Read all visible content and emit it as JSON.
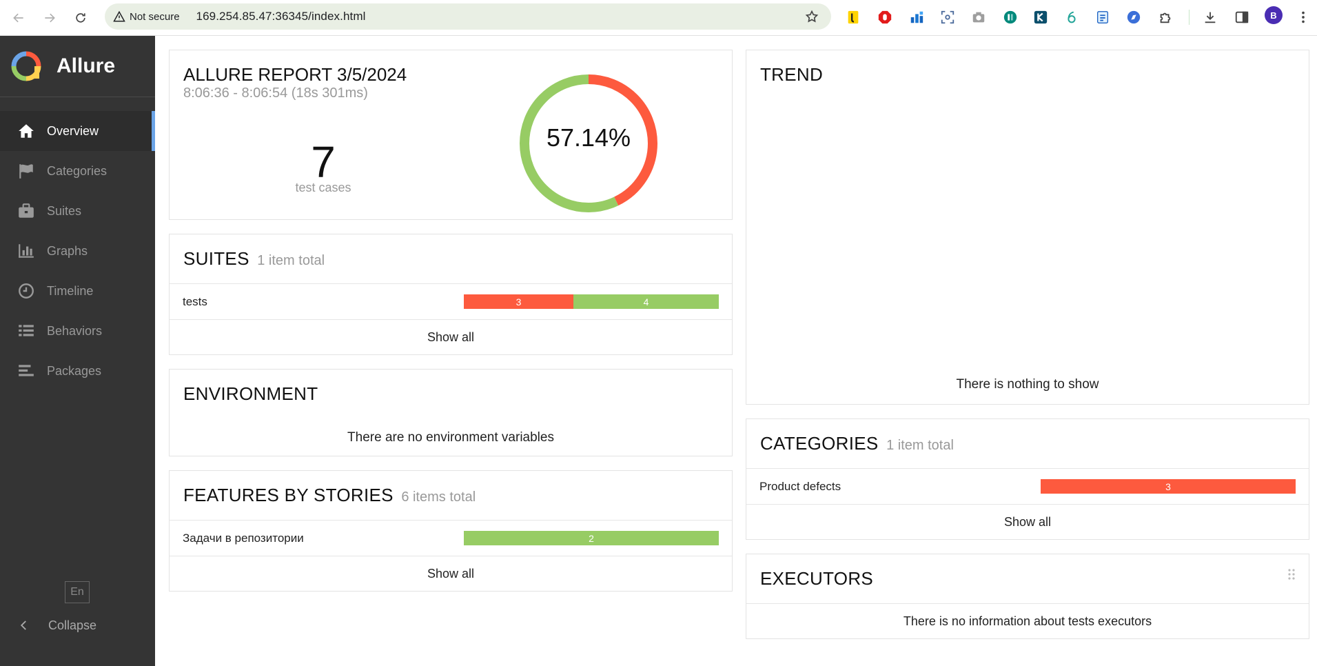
{
  "browser": {
    "security_label": "Not secure",
    "url": "169.254.85.47:36345/index.html",
    "profile_initial": "B"
  },
  "sidebar": {
    "brand": "Allure",
    "items": [
      {
        "label": "Overview",
        "icon": "home-icon",
        "active": true
      },
      {
        "label": "Categories",
        "icon": "flag-icon",
        "active": false
      },
      {
        "label": "Suites",
        "icon": "briefcase-icon",
        "active": false
      },
      {
        "label": "Graphs",
        "icon": "bar-chart-icon",
        "active": false
      },
      {
        "label": "Timeline",
        "icon": "clock-icon",
        "active": false
      },
      {
        "label": "Behaviors",
        "icon": "list-icon",
        "active": false
      },
      {
        "label": "Packages",
        "icon": "align-left-icon",
        "active": false
      }
    ],
    "language": "En",
    "collapse_label": "Collapse"
  },
  "summary": {
    "title": "ALLURE REPORT 3/5/2024",
    "time_range": "8:06:36 - 8:06:54 (18s 301ms)",
    "test_count": "7",
    "test_count_label": "test cases",
    "pass_rate_label": "57.14%",
    "pass_rate": 0.5714
  },
  "suites": {
    "title": "SUITES",
    "subtitle": "1 item total",
    "rows": [
      {
        "name": "tests",
        "failed": 3,
        "passed": 4
      }
    ],
    "show_all": "Show all"
  },
  "environment": {
    "title": "ENVIRONMENT",
    "empty": "There are no environment variables"
  },
  "features": {
    "title": "FEATURES BY STORIES",
    "subtitle": "6 items total",
    "rows": [
      {
        "name": "Задачи в репозитории",
        "failed": 0,
        "passed": 2
      }
    ],
    "show_all": "Show all"
  },
  "trend": {
    "title": "TREND",
    "empty": "There is nothing to show"
  },
  "categories": {
    "title": "CATEGORIES",
    "subtitle": "1 item total",
    "rows": [
      {
        "name": "Product defects",
        "failed": 3,
        "passed": 0
      }
    ],
    "show_all": "Show all"
  },
  "executors": {
    "title": "EXECUTORS",
    "empty": "There is no information about tests executors"
  },
  "colors": {
    "failed": "#fd5a3e",
    "passed": "#97cc64",
    "sidebar_bg": "#343434",
    "active_accent": "#6ba4e7"
  }
}
